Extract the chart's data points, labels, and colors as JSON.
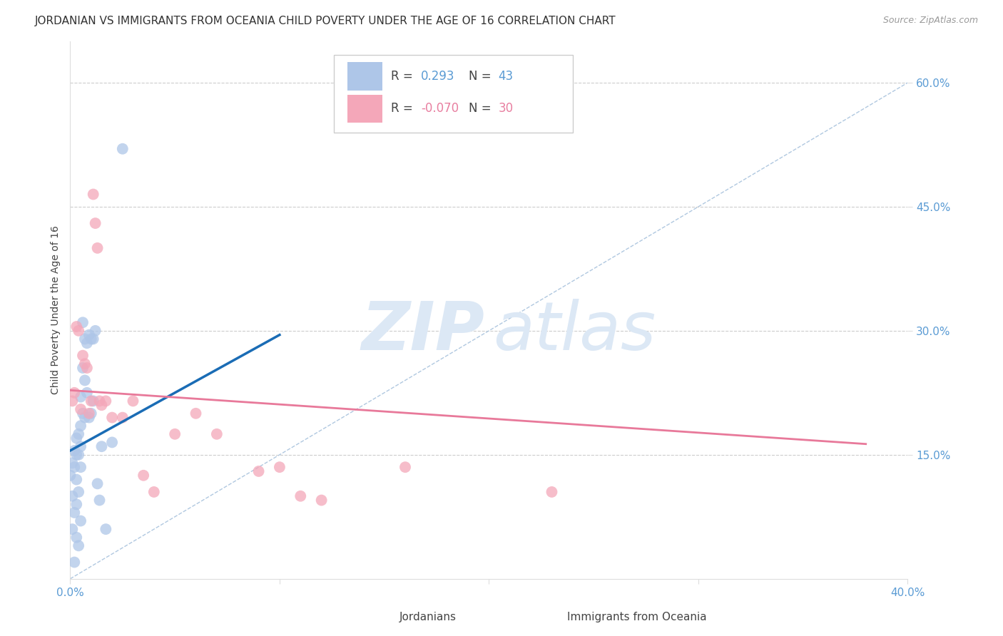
{
  "title": "JORDANIAN VS IMMIGRANTS FROM OCEANIA CHILD POVERTY UNDER THE AGE OF 16 CORRELATION CHART",
  "source": "Source: ZipAtlas.com",
  "ylabel": "Child Poverty Under the Age of 16",
  "xlim": [
    0.0,
    0.4
  ],
  "ylim": [
    0.0,
    0.65
  ],
  "ytick_positions": [
    0.15,
    0.3,
    0.45,
    0.6
  ],
  "ytick_labels": [
    "15.0%",
    "30.0%",
    "45.0%",
    "60.0%"
  ],
  "jordanians_x": [
    0.0,
    0.001,
    0.001,
    0.001,
    0.002,
    0.002,
    0.002,
    0.002,
    0.003,
    0.003,
    0.003,
    0.003,
    0.003,
    0.004,
    0.004,
    0.004,
    0.004,
    0.005,
    0.005,
    0.005,
    0.005,
    0.005,
    0.006,
    0.006,
    0.006,
    0.007,
    0.007,
    0.007,
    0.008,
    0.008,
    0.009,
    0.009,
    0.01,
    0.01,
    0.011,
    0.011,
    0.012,
    0.013,
    0.014,
    0.015,
    0.017,
    0.02,
    0.025
  ],
  "jordanians_y": [
    0.125,
    0.14,
    0.1,
    0.06,
    0.155,
    0.135,
    0.08,
    0.02,
    0.17,
    0.15,
    0.12,
    0.09,
    0.05,
    0.175,
    0.15,
    0.105,
    0.04,
    0.22,
    0.185,
    0.16,
    0.135,
    0.07,
    0.31,
    0.255,
    0.2,
    0.29,
    0.24,
    0.195,
    0.285,
    0.225,
    0.295,
    0.195,
    0.29,
    0.2,
    0.29,
    0.215,
    0.3,
    0.115,
    0.095,
    0.16,
    0.06,
    0.165,
    0.52
  ],
  "oceania_x": [
    0.001,
    0.002,
    0.003,
    0.004,
    0.005,
    0.006,
    0.007,
    0.008,
    0.009,
    0.01,
    0.011,
    0.012,
    0.013,
    0.014,
    0.015,
    0.017,
    0.02,
    0.025,
    0.03,
    0.035,
    0.04,
    0.05,
    0.06,
    0.07,
    0.09,
    0.1,
    0.11,
    0.12,
    0.16,
    0.23
  ],
  "oceania_y": [
    0.215,
    0.225,
    0.305,
    0.3,
    0.205,
    0.27,
    0.26,
    0.255,
    0.2,
    0.215,
    0.465,
    0.43,
    0.4,
    0.215,
    0.21,
    0.215,
    0.195,
    0.195,
    0.215,
    0.125,
    0.105,
    0.175,
    0.2,
    0.175,
    0.13,
    0.135,
    0.1,
    0.095,
    0.135,
    0.105
  ],
  "blue_line_x": [
    0.0,
    0.1
  ],
  "blue_line_y_start": 0.155,
  "blue_line_y_end": 0.295,
  "pink_line_x": [
    0.0,
    0.38
  ],
  "pink_line_y_start": 0.228,
  "pink_line_y_end": 0.163,
  "diag_line_x": [
    0.0,
    0.4
  ],
  "diag_line_y": [
    0.0,
    0.6
  ],
  "blue_line_color": "#1a6cb5",
  "pink_line_color": "#e8799a",
  "scatter_blue": "#aec6e8",
  "scatter_pink": "#f4a7b9",
  "grid_color": "#cccccc",
  "watermark_zip": "ZIP",
  "watermark_atlas": "atlas",
  "watermark_color": "#dce8f5",
  "background": "#ffffff",
  "title_fontsize": 11,
  "axis_label_fontsize": 10,
  "tick_fontsize": 11,
  "legend_fontsize": 12,
  "r1_value": "0.293",
  "r1_n": "43",
  "r2_value": "-0.070",
  "r2_n": "30",
  "r1_color": "#5a9bd4",
  "r2_color": "#e87fa0"
}
